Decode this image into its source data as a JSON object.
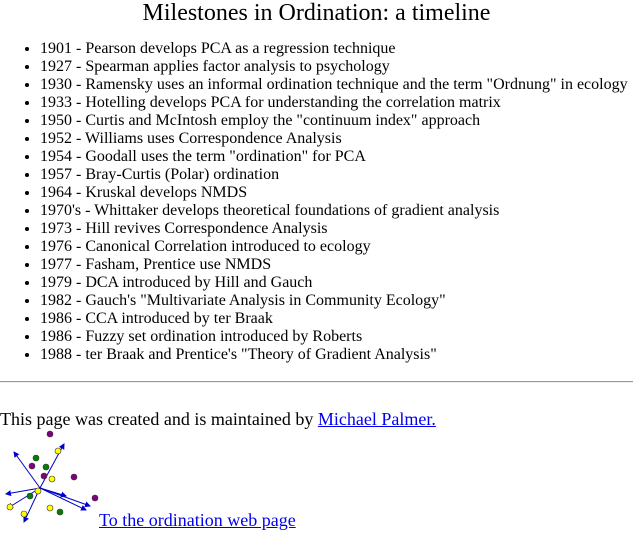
{
  "title": "Milestones in Ordination: a timeline",
  "milestones": [
    "1901 - Pearson develops PCA as a regression technique",
    "1927 - Spearman applies factor analysis to psychology",
    "1930 - Ramensky uses an informal ordination technique and the term \"Ordnung\" in ecology",
    "1933 - Hotelling develops PCA for understanding the correlation matrix",
    "1950 - Curtis and McIntosh employ the \"continuum index\" approach",
    "1952 - Williams uses Correspondence Analysis",
    "1954 - Goodall uses the term \"ordination\" for PCA",
    "1957 - Bray-Curtis (Polar) ordination",
    "1964 - Kruskal develops NMDS",
    "1970's - Whittaker develops theoretical foundations of gradient analysis",
    "1973 - Hill revives Correspondence Analysis",
    "1976 - Canonical Correlation introduced to ecology",
    "1977 - Fasham, Prentice use NMDS",
    "1979 - DCA introduced by Hill and Gauch",
    "1982 - Gauch's \"Multivariate Analysis in Community Ecology\"",
    "1986 - CCA introduced by ter Braak",
    "1986 - Fuzzy set ordination introduced by Roberts",
    "1988 - ter Braak and Prentice's \"Theory of Gradient Analysis\""
  ],
  "footer": {
    "credit_text": "This page was created and is maintained by ",
    "author_link": "Michael Palmer.",
    "home_link": "To the ordination web page",
    "logo_icon": "ordination-biplot-icon"
  },
  "colors": {
    "link": "#0000ee",
    "arrow": "#0000cc",
    "point_purple": "#800080",
    "point_yellow": "#ffff00",
    "point_green": "#008000"
  }
}
